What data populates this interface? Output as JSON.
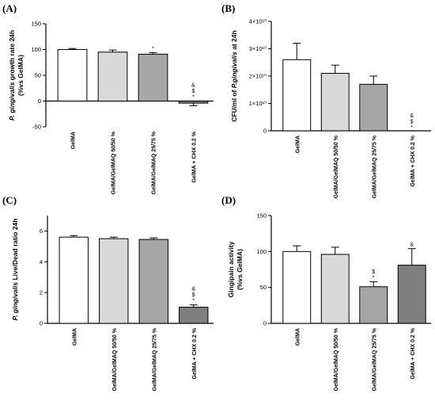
{
  "panel_labels": [
    "(A)",
    "(B)",
    "(C)",
    "(D)"
  ],
  "categories": [
    "GelMA",
    "GelMA/GelMAQ 50/50 %",
    "GelMA/GelMAQ 25/75 %",
    "GelMA + CHX 0.2 %"
  ],
  "bar_colors": [
    "#ffffff",
    "#d9d9d9",
    "#a6a6a6",
    "#7f7f7f"
  ],
  "chart_data": [
    {
      "type": "bar",
      "panel": "(A)",
      "ylabel_line1": "P. gingivalis growth rate 24h",
      "ylabel_line2": "(%vs GelMA)",
      "ylim": [
        -50,
        150
      ],
      "yticks": [
        "-50",
        "0",
        "50",
        "100",
        "150"
      ],
      "ytick_values": [
        -50,
        0,
        50,
        100,
        150
      ],
      "categories": [
        "GelMA",
        "GelMA/GelMAQ 50/50 %",
        "GelMA/GelMAQ 25/75 %",
        "GelMA + CHX 0.2 %"
      ],
      "values": [
        100,
        95,
        91,
        -4
      ],
      "errors": [
        2,
        4,
        3,
        5
      ],
      "significance": [
        "",
        "",
        "*",
        "&\n$\n*"
      ]
    },
    {
      "type": "bar",
      "panel": "(B)",
      "ylabel_line1": "CFU/ml of P.gingivalis at 24h",
      "ylabel_line2": "",
      "ylim": [
        0,
        40000000000
      ],
      "yticks": [
        "0",
        "1×10¹⁰",
        "2×10¹⁰",
        "3×10¹⁰",
        "4×10¹⁰"
      ],
      "ytick_values": [
        0,
        10000000000,
        20000000000,
        30000000000,
        40000000000
      ],
      "categories": [
        "GelMA",
        "GelMA/GelMAQ 50/50 %",
        "GelMA/GelMAQ 25/75 %",
        "GelMA + CHX 0.2 %"
      ],
      "values": [
        26000000000,
        21000000000,
        17000000000,
        0
      ],
      "errors": [
        6000000000,
        3000000000,
        3000000000,
        0
      ],
      "significance": [
        "",
        "",
        "",
        "&\n$\n*"
      ]
    },
    {
      "type": "bar",
      "panel": "(C)",
      "ylabel_line1": "P. gingivalis Live/Dead ratio 24h",
      "ylabel_line2": "",
      "ylim": [
        0,
        7
      ],
      "yticks": [
        "0",
        "2",
        "4",
        "6"
      ],
      "ytick_values": [
        0,
        2,
        4,
        6
      ],
      "categories": [
        "GelMA",
        "GelMA/GelMAQ 50/50 %",
        "GelMA/GelMAQ 25/75 %",
        "GelMA + CHX 0.2 %"
      ],
      "values": [
        5.6,
        5.5,
        5.45,
        1.05
      ],
      "errors": [
        0.1,
        0.1,
        0.1,
        0.15
      ],
      "significance": [
        "",
        "",
        "",
        "&\n$\n*"
      ]
    },
    {
      "type": "bar",
      "panel": "(D)",
      "ylabel_line1": "Gingipain activity",
      "ylabel_line2": "(%vs GelMA)",
      "ylim": [
        0,
        150
      ],
      "yticks": [
        "0",
        "50",
        "100",
        "150"
      ],
      "ytick_values": [
        0,
        50,
        100,
        150
      ],
      "categories": [
        "GelMA",
        "GelMA/GelMAQ 50/50 %",
        "GelMA/GelMAQ 25/75 %",
        "GelMA + CHX 0.2 %"
      ],
      "values": [
        100,
        96,
        51,
        81
      ],
      "errors": [
        8,
        10,
        7,
        23
      ],
      "significance": [
        "",
        "",
        "$\n*",
        "&"
      ]
    }
  ]
}
